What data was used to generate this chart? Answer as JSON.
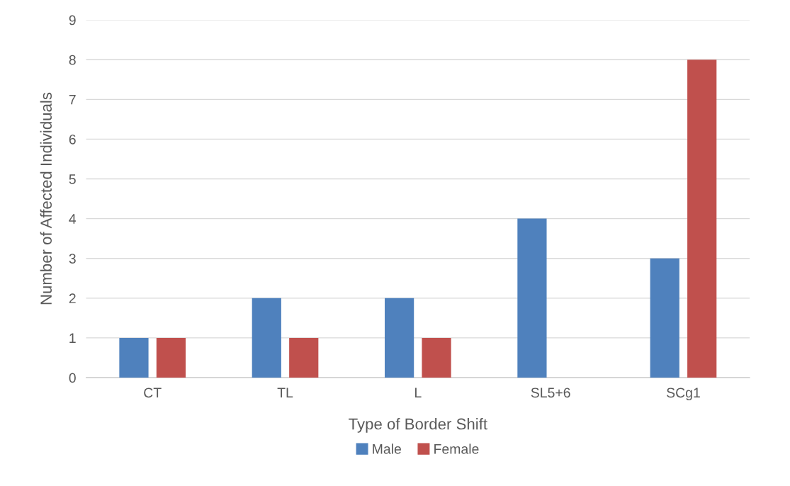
{
  "chart_data": {
    "type": "bar",
    "xlabel": "Type of Border Shift",
    "ylabel": "Number of Affected Individuals",
    "categories": [
      "CT",
      "TL",
      "L",
      "SL5+6",
      "SCg1"
    ],
    "series": [
      {
        "name": "Male",
        "color": "#4f81bd",
        "values": [
          1,
          2,
          2,
          4,
          3
        ]
      },
      {
        "name": "Female",
        "color": "#c0504d",
        "values": [
          1,
          1,
          1,
          0,
          8
        ]
      }
    ],
    "ylim": [
      0,
      9
    ],
    "yticks": [
      0,
      1,
      2,
      3,
      4,
      5,
      6,
      7,
      8,
      9
    ],
    "grid": "y",
    "legend": "bottom"
  }
}
